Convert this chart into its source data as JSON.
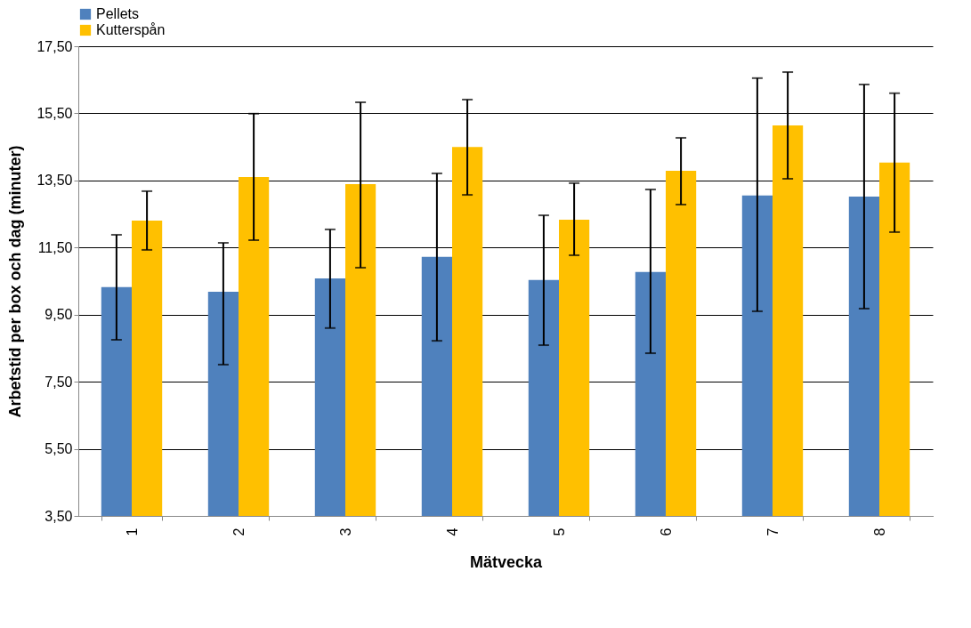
{
  "chart_data": {
    "type": "bar",
    "xlabel": "Mätvecka",
    "ylabel": "Arbetstid per box och dag (minuter)",
    "categories": [
      "1",
      "2",
      "3",
      "4",
      "5",
      "6",
      "7",
      "8"
    ],
    "series": [
      {
        "name": "Pellets",
        "color": "#4f81bd",
        "values": [
          10.32,
          10.18,
          10.58,
          11.22,
          10.53,
          10.77,
          13.05,
          13.02
        ],
        "errors": [
          [
            8.75,
            11.88
          ],
          [
            8.01,
            11.64
          ],
          [
            9.1,
            12.04
          ],
          [
            8.72,
            13.71
          ],
          [
            8.59,
            12.46
          ],
          [
            8.35,
            13.23
          ],
          [
            9.6,
            16.55
          ],
          [
            9.68,
            16.36
          ]
        ]
      },
      {
        "name": "Kutterspån",
        "color": "#ffc000",
        "values": [
          12.3,
          13.6,
          13.39,
          14.5,
          12.33,
          13.79,
          15.14,
          14.03
        ],
        "errors": [
          [
            11.43,
            13.18
          ],
          [
            11.72,
            15.49
          ],
          [
            10.9,
            15.83
          ],
          [
            13.07,
            15.91
          ],
          [
            11.27,
            13.42
          ],
          [
            12.78,
            14.77
          ],
          [
            13.55,
            16.73
          ],
          [
            11.96,
            16.1
          ]
        ]
      }
    ],
    "ylim": [
      3.5,
      17.5
    ],
    "yticks": [
      {
        "value": 3.5,
        "label": "3,50"
      },
      {
        "value": 5.5,
        "label": "5,50"
      },
      {
        "value": 7.5,
        "label": "7,50"
      },
      {
        "value": 9.5,
        "label": "9,50"
      },
      {
        "value": 11.5,
        "label": "11,50"
      },
      {
        "value": 13.5,
        "label": "13,50"
      },
      {
        "value": 15.5,
        "label": "15,50"
      },
      {
        "value": 17.5,
        "label": "17,50"
      }
    ],
    "grid": "y",
    "legend": "top"
  }
}
